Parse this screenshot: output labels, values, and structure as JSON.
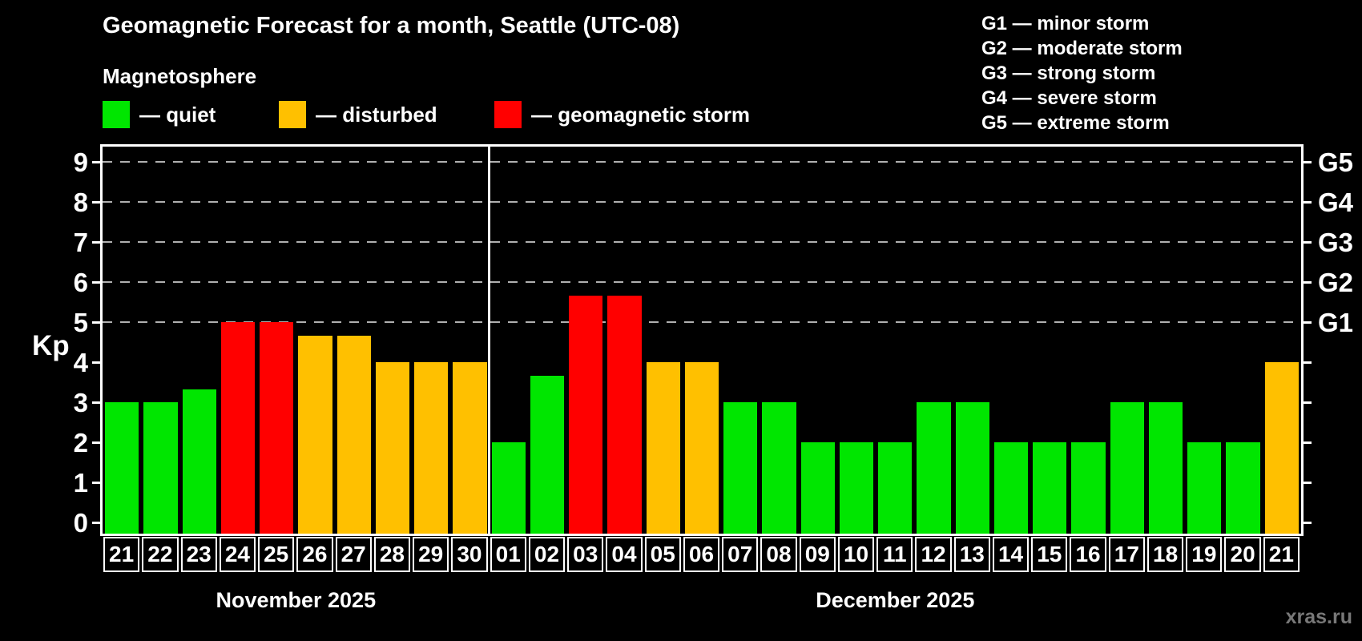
{
  "title": "Geomagnetic Forecast for a month, Seattle (UTC-08)",
  "subtitle": "Magnetosphere",
  "kp_legend": [
    {
      "key": "quiet",
      "label": "— quiet",
      "color": "#00e600"
    },
    {
      "key": "disturbed",
      "label": "— disturbed",
      "color": "#ffc000"
    },
    {
      "key": "storm",
      "label": "— geomagnetic storm",
      "color": "#ff0000"
    }
  ],
  "g_legend": [
    "G1 — minor storm",
    "G2 — moderate storm",
    "G3 — strong storm",
    "G4 — severe storm",
    "G5 — extreme storm"
  ],
  "watermark": "xras.ru",
  "chart_data": {
    "type": "bar",
    "ylabel": "Kp",
    "ylim": [
      0,
      9
    ],
    "yticks": [
      0,
      1,
      2,
      3,
      4,
      5,
      6,
      7,
      8,
      9
    ],
    "grid": {
      "dashed_levels": [
        5,
        6,
        7,
        8,
        9
      ],
      "color": "#b0b0b0"
    },
    "right_axis": [
      {
        "kp": 5,
        "label": "G1"
      },
      {
        "kp": 6,
        "label": "G2"
      },
      {
        "kp": 7,
        "label": "G3"
      },
      {
        "kp": 8,
        "label": "G4"
      },
      {
        "kp": 9,
        "label": "G5"
      }
    ],
    "colors": {
      "quiet": "#00e600",
      "disturbed": "#ffc000",
      "storm": "#ff0000"
    },
    "months": [
      {
        "label": "November 2025",
        "days": [
          {
            "day": "21",
            "kp": 3.0,
            "level": "quiet"
          },
          {
            "day": "22",
            "kp": 3.0,
            "level": "quiet"
          },
          {
            "day": "23",
            "kp": 3.33,
            "level": "quiet"
          },
          {
            "day": "24",
            "kp": 5.0,
            "level": "storm"
          },
          {
            "day": "25",
            "kp": 5.0,
            "level": "storm"
          },
          {
            "day": "26",
            "kp": 4.67,
            "level": "disturbed"
          },
          {
            "day": "27",
            "kp": 4.67,
            "level": "disturbed"
          },
          {
            "day": "28",
            "kp": 4.0,
            "level": "disturbed"
          },
          {
            "day": "29",
            "kp": 4.0,
            "level": "disturbed"
          },
          {
            "day": "30",
            "kp": 4.0,
            "level": "disturbed"
          }
        ]
      },
      {
        "label": "December 2025",
        "days": [
          {
            "day": "01",
            "kp": 2.0,
            "level": "quiet"
          },
          {
            "day": "02",
            "kp": 3.67,
            "level": "quiet"
          },
          {
            "day": "03",
            "kp": 5.67,
            "level": "storm"
          },
          {
            "day": "04",
            "kp": 5.67,
            "level": "storm"
          },
          {
            "day": "05",
            "kp": 4.0,
            "level": "disturbed"
          },
          {
            "day": "06",
            "kp": 4.0,
            "level": "disturbed"
          },
          {
            "day": "07",
            "kp": 3.0,
            "level": "quiet"
          },
          {
            "day": "08",
            "kp": 3.0,
            "level": "quiet"
          },
          {
            "day": "09",
            "kp": 2.0,
            "level": "quiet"
          },
          {
            "day": "10",
            "kp": 2.0,
            "level": "quiet"
          },
          {
            "day": "11",
            "kp": 2.0,
            "level": "quiet"
          },
          {
            "day": "12",
            "kp": 3.0,
            "level": "quiet"
          },
          {
            "day": "13",
            "kp": 3.0,
            "level": "quiet"
          },
          {
            "day": "14",
            "kp": 2.0,
            "level": "quiet"
          },
          {
            "day": "15",
            "kp": 2.0,
            "level": "quiet"
          },
          {
            "day": "16",
            "kp": 2.0,
            "level": "quiet"
          },
          {
            "day": "17",
            "kp": 3.0,
            "level": "quiet"
          },
          {
            "day": "18",
            "kp": 3.0,
            "level": "quiet"
          },
          {
            "day": "19",
            "kp": 2.0,
            "level": "quiet"
          },
          {
            "day": "20",
            "kp": 2.0,
            "level": "quiet"
          },
          {
            "day": "21",
            "kp": 4.0,
            "level": "disturbed"
          }
        ]
      }
    ]
  }
}
